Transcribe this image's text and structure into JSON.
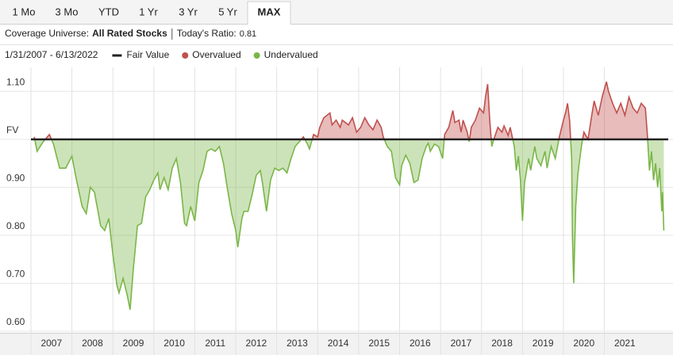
{
  "tabs": [
    {
      "label": "1 Mo"
    },
    {
      "label": "3 Mo"
    },
    {
      "label": "YTD"
    },
    {
      "label": "1 Yr"
    },
    {
      "label": "3 Yr"
    },
    {
      "label": "5 Yr"
    },
    {
      "label": "MAX",
      "active": true
    }
  ],
  "header": {
    "universe_label": "Coverage Universe:",
    "universe": "All Rated Stocks",
    "ratio_label": "Today's Ratio:",
    "ratio": "0.81"
  },
  "chart_data": {
    "type": "valuation-area",
    "date_range": "1/31/2007 - 6/13/2022",
    "fair_value": {
      "name": "Fair Value",
      "value": 1,
      "color": "#222222"
    },
    "above": {
      "name": "Overvalued",
      "color": "#c0504d"
    },
    "below": {
      "name": "Undervalued",
      "color": "#7ab648"
    },
    "xlim": [
      2007,
      2022.5
    ],
    "xticks": [
      2007,
      2008,
      2009,
      2010,
      2011,
      2012,
      2013,
      2014,
      2015,
      2016,
      2017,
      2018,
      2019,
      2020,
      2021
    ],
    "ylim": [
      0.6,
      1.15
    ],
    "yticks": [
      {
        "value": 0.6,
        "label": "0.60"
      },
      {
        "value": 0.7,
        "label": "0.70"
      },
      {
        "value": 0.8,
        "label": "0.80"
      },
      {
        "value": 0.9,
        "label": "0.90"
      },
      {
        "value": 1.0,
        "label": "FV"
      },
      {
        "value": 1.1,
        "label": "1.10"
      }
    ],
    "grid": true,
    "x": [
      2007.08,
      2007.15,
      2007.3,
      2007.45,
      2007.55,
      2007.7,
      2007.85,
      2008.0,
      2008.1,
      2008.25,
      2008.35,
      2008.45,
      2008.55,
      2008.7,
      2008.8,
      2008.9,
      2009.0,
      2009.1,
      2009.15,
      2009.25,
      2009.35,
      2009.42,
      2009.5,
      2009.6,
      2009.7,
      2009.8,
      2009.9,
      2010.0,
      2010.1,
      2010.15,
      2010.25,
      2010.35,
      2010.45,
      2010.55,
      2010.65,
      2010.75,
      2010.8,
      2010.9,
      2011.0,
      2011.1,
      2011.2,
      2011.3,
      2011.4,
      2011.5,
      2011.6,
      2011.7,
      2011.8,
      2011.9,
      2012.0,
      2012.05,
      2012.15,
      2012.2,
      2012.3,
      2012.4,
      2012.5,
      2012.6,
      2012.65,
      2012.75,
      2012.85,
      2012.95,
      2013.05,
      2013.15,
      2013.25,
      2013.35,
      2013.45,
      2013.55,
      2013.65,
      2013.75,
      2013.8,
      2013.9,
      2014.0,
      2014.05,
      2014.15,
      2014.3,
      2014.35,
      2014.45,
      2014.55,
      2014.6,
      2014.75,
      2014.85,
      2014.95,
      2015.05,
      2015.15,
      2015.25,
      2015.35,
      2015.45,
      2015.55,
      2015.6,
      2015.7,
      2015.8,
      2015.9,
      2016.0,
      2016.05,
      2016.15,
      2016.25,
      2016.35,
      2016.45,
      2016.55,
      2016.65,
      2016.7,
      2016.75,
      2016.85,
      2016.95,
      2017.05,
      2017.1,
      2017.2,
      2017.3,
      2017.35,
      2017.45,
      2017.5,
      2017.55,
      2017.65,
      2017.7,
      2017.75,
      2017.85,
      2017.95,
      2018.05,
      2018.1,
      2018.15,
      2018.2,
      2018.25,
      2018.3,
      2018.4,
      2018.5,
      2018.55,
      2018.65,
      2018.7,
      2018.8,
      2018.85,
      2018.9,
      2018.95,
      2019.0,
      2019.05,
      2019.15,
      2019.2,
      2019.3,
      2019.35,
      2019.45,
      2019.55,
      2019.6,
      2019.7,
      2019.8,
      2019.9,
      2020.0,
      2020.05,
      2020.1,
      2020.15,
      2020.2,
      2020.22,
      2020.25,
      2020.3,
      2020.35,
      2020.4,
      2020.45,
      2020.5,
      2020.6,
      2020.7,
      2020.75,
      2020.85,
      2020.95,
      2021.05,
      2021.1,
      2021.2,
      2021.3,
      2021.4,
      2021.5,
      2021.6,
      2021.7,
      2021.8,
      2021.9,
      2022.0,
      2022.05,
      2022.1,
      2022.15,
      2022.2,
      2022.25,
      2022.3,
      2022.35,
      2022.4,
      2022.42,
      2022.45
    ],
    "values": [
      1.005,
      0.975,
      0.995,
      1.01,
      0.99,
      0.94,
      0.94,
      0.965,
      0.92,
      0.86,
      0.845,
      0.9,
      0.89,
      0.82,
      0.81,
      0.835,
      0.76,
      0.695,
      0.68,
      0.71,
      0.675,
      0.645,
      0.73,
      0.82,
      0.825,
      0.88,
      0.895,
      0.915,
      0.93,
      0.895,
      0.92,
      0.895,
      0.94,
      0.96,
      0.91,
      0.825,
      0.82,
      0.86,
      0.83,
      0.91,
      0.935,
      0.975,
      0.98,
      0.975,
      0.985,
      0.95,
      0.895,
      0.845,
      0.81,
      0.775,
      0.835,
      0.85,
      0.85,
      0.885,
      0.925,
      0.935,
      0.91,
      0.85,
      0.915,
      0.94,
      0.935,
      0.94,
      0.93,
      0.96,
      0.985,
      0.995,
      1.005,
      0.99,
      0.98,
      1.01,
      1.005,
      1.025,
      1.045,
      1.055,
      1.03,
      1.04,
      1.025,
      1.04,
      1.03,
      1.045,
      1.015,
      1.025,
      1.045,
      1.03,
      1.02,
      1.04,
      1.025,
      1.005,
      0.985,
      0.975,
      0.92,
      0.905,
      0.945,
      0.967,
      0.95,
      0.91,
      0.915,
      0.96,
      0.985,
      0.992,
      0.975,
      0.99,
      0.985,
      0.96,
      1.01,
      1.025,
      1.06,
      1.035,
      1.04,
      1.015,
      1.04,
      1.015,
      0.995,
      1.025,
      1.04,
      1.065,
      1.055,
      1.09,
      1.115,
      1.04,
      0.985,
      1.0,
      1.025,
      1.015,
      1.028,
      1.008,
      1.025,
      0.985,
      0.935,
      0.965,
      0.915,
      0.83,
      0.91,
      0.96,
      0.935,
      0.985,
      0.96,
      0.945,
      0.975,
      0.94,
      0.985,
      0.96,
      1.005,
      1.04,
      1.055,
      1.075,
      1.04,
      0.96,
      0.795,
      0.7,
      0.86,
      0.925,
      0.96,
      0.992,
      1.015,
      1.0,
      1.055,
      1.08,
      1.05,
      1.09,
      1.12,
      1.1,
      1.075,
      1.055,
      1.075,
      1.05,
      1.088,
      1.065,
      1.055,
      1.075,
      1.065,
      1.008,
      0.935,
      0.975,
      0.915,
      0.95,
      0.9,
      0.94,
      0.85,
      0.89,
      0.81
    ]
  }
}
